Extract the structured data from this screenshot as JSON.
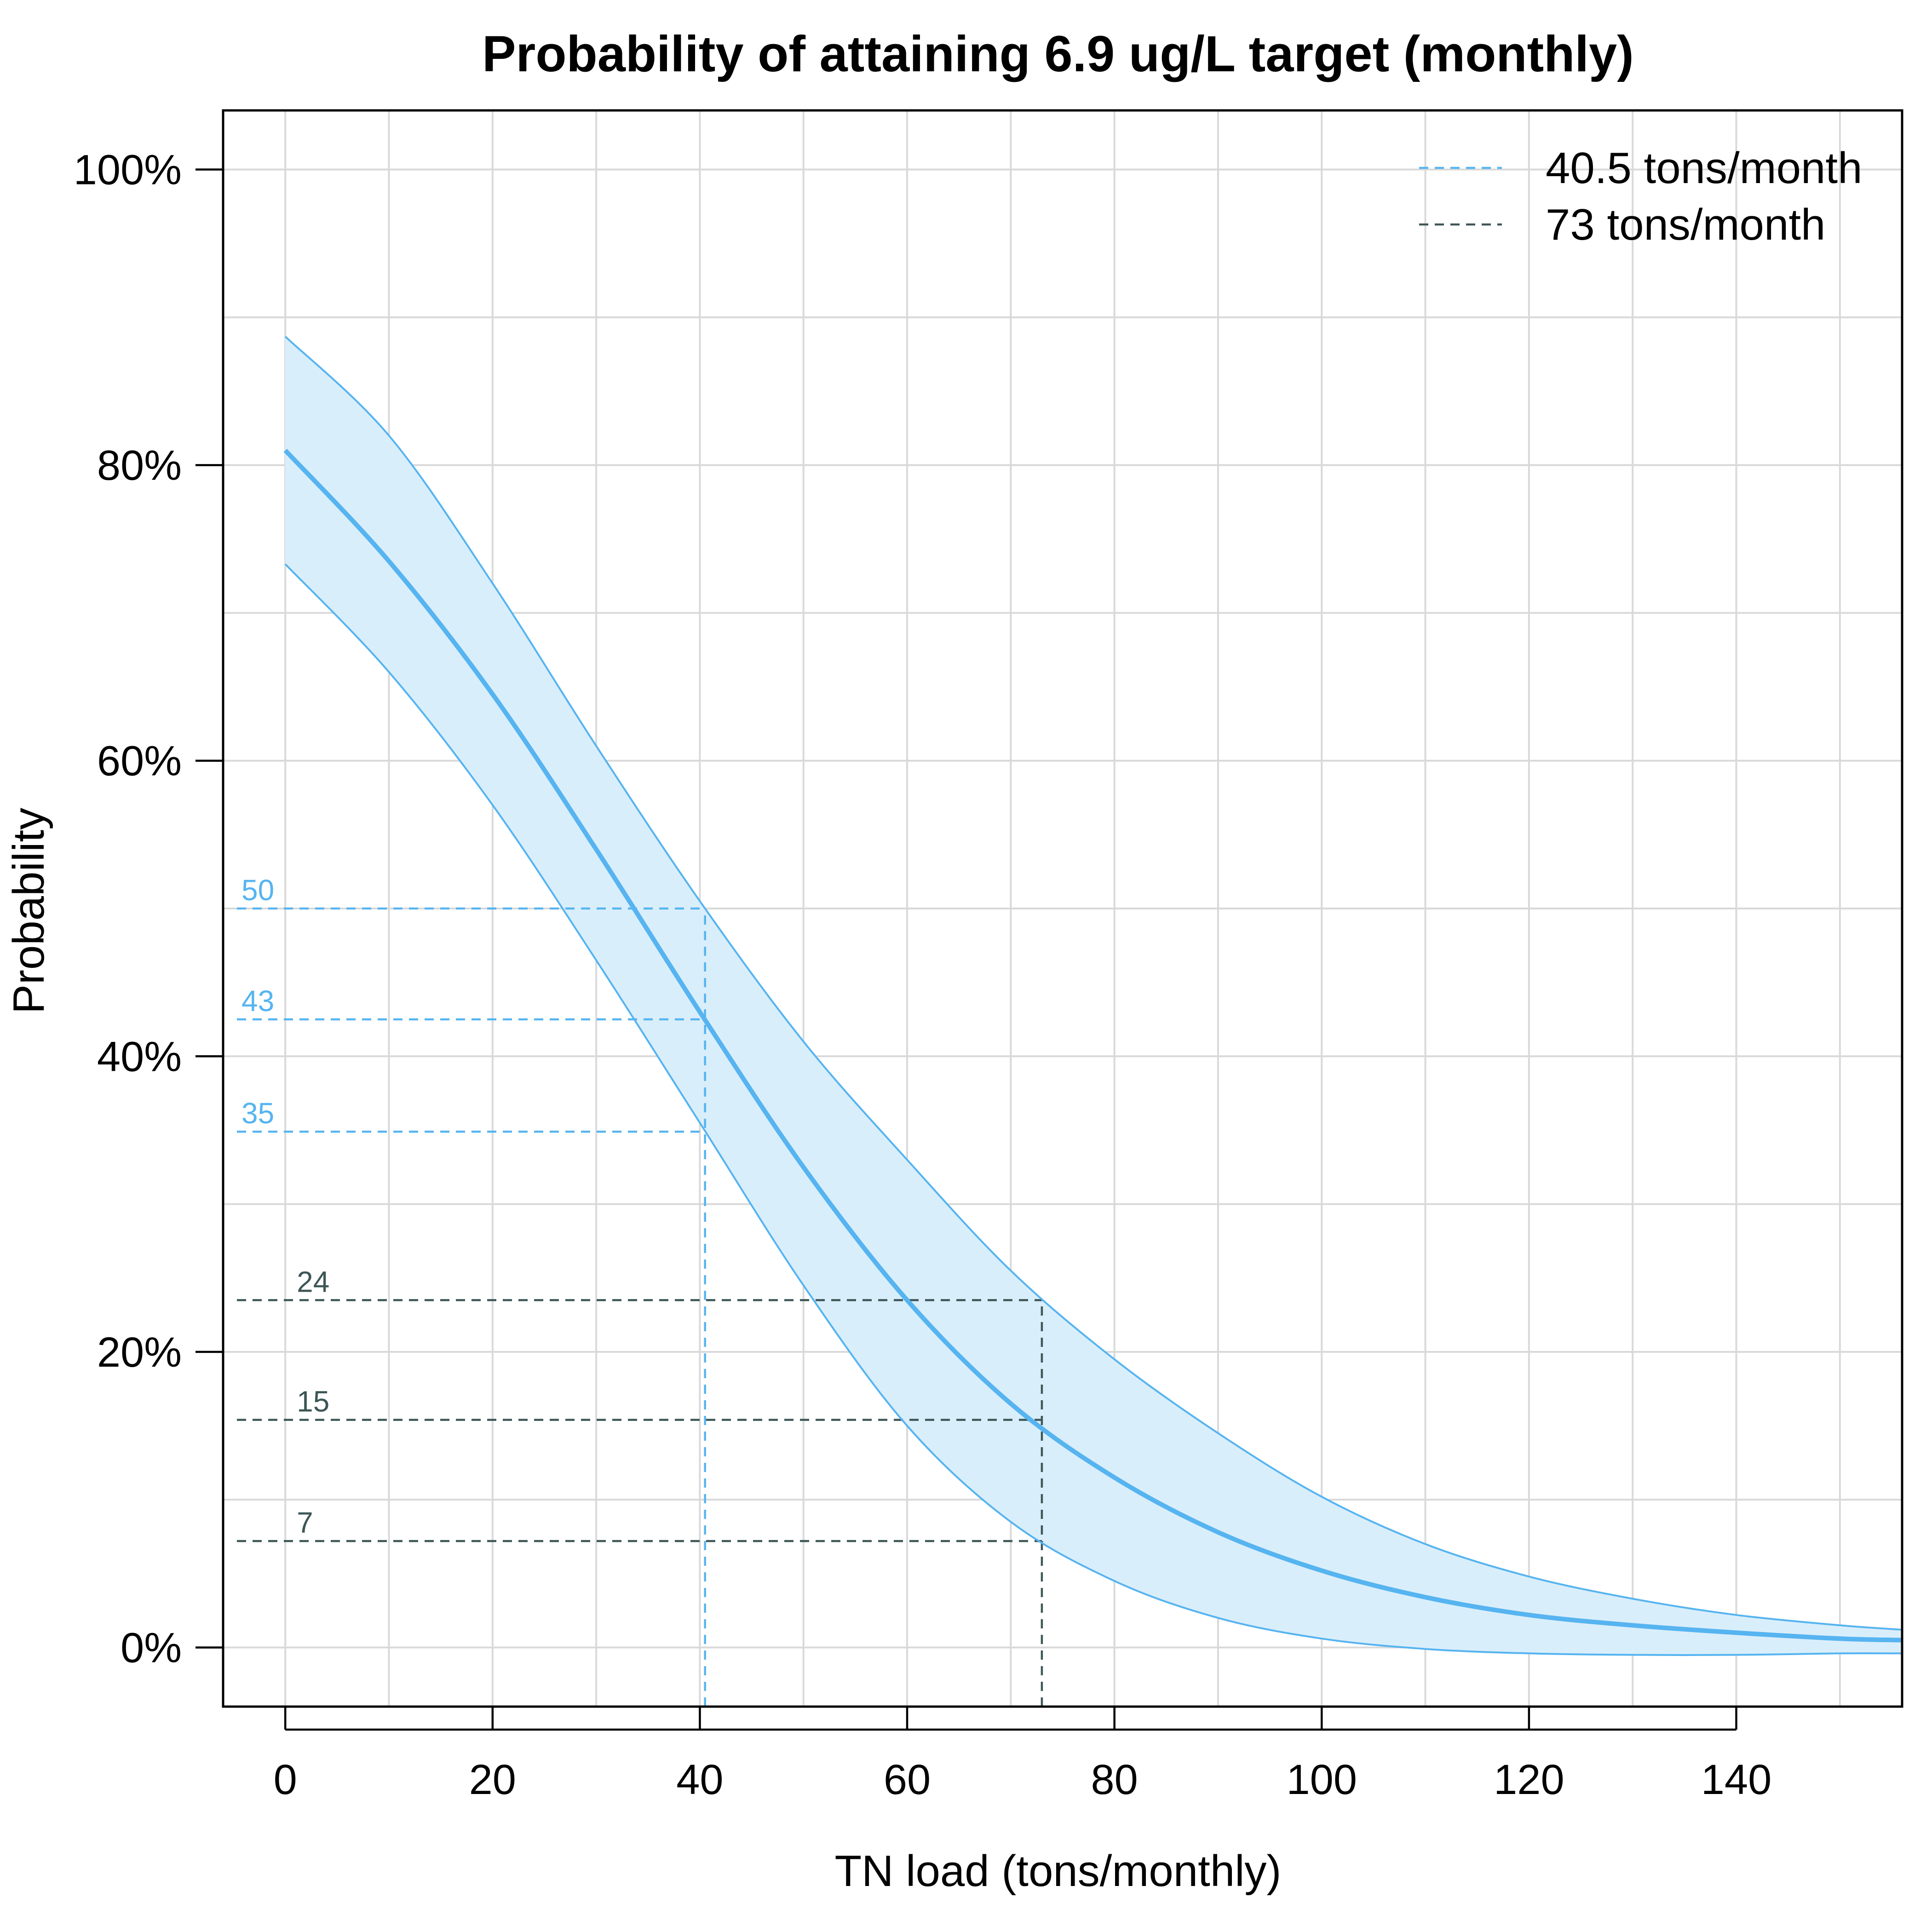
{
  "chart_data": {
    "type": "line",
    "title": "Probability of attaining 6.9 ug/L target (monthly)",
    "xlabel": "TN load (tons/monthly)",
    "ylabel": "Probability",
    "xlim": [
      -6,
      156
    ],
    "ylim": [
      -0.04,
      1.04
    ],
    "x_ticks": [
      0,
      20,
      40,
      60,
      80,
      100,
      120,
      140
    ],
    "x_tick_labels": [
      "0",
      "20",
      "40",
      "60",
      "80",
      "100",
      "120",
      "140"
    ],
    "y_ticks": [
      0,
      0.2,
      0.4,
      0.6,
      0.8,
      1.0
    ],
    "y_tick_labels": [
      "0%",
      "20%",
      "40%",
      "60%",
      "80%",
      "100%"
    ],
    "x_grid": [
      0,
      10,
      20,
      30,
      40,
      50,
      60,
      70,
      80,
      90,
      100,
      110,
      120,
      130,
      140,
      150
    ],
    "y_grid": [
      0,
      0.1,
      0.2,
      0.3,
      0.4,
      0.5,
      0.6,
      0.7,
      0.8,
      0.9,
      1.0
    ],
    "grid": true,
    "legend_position": "top-right",
    "colors": {
      "series": "#56b4f0",
      "band_fill": "#d9eefb",
      "ref_40_5": "#56b4f0",
      "ref_73": "#3d5656",
      "grid": "#d9d9d9",
      "axis": "#000000"
    },
    "x": [
      0,
      10,
      20,
      30,
      40,
      50,
      60,
      70,
      80,
      90,
      100,
      110,
      120,
      130,
      140,
      150,
      156
    ],
    "series": [
      {
        "role": "estimate",
        "values": [
          0.81,
          0.735,
          0.645,
          0.54,
          0.43,
          0.325,
          0.235,
          0.165,
          0.115,
          0.078,
          0.052,
          0.034,
          0.022,
          0.015,
          0.01,
          0.006,
          0.005
        ]
      },
      {
        "role": "upper",
        "values": [
          0.887,
          0.82,
          0.72,
          0.61,
          0.505,
          0.41,
          0.33,
          0.255,
          0.195,
          0.145,
          0.102,
          0.07,
          0.048,
          0.033,
          0.022,
          0.015,
          0.012
        ]
      },
      {
        "role": "lower",
        "values": [
          0.733,
          0.66,
          0.57,
          0.465,
          0.355,
          0.245,
          0.15,
          0.085,
          0.045,
          0.02,
          0.006,
          -0.001,
          -0.004,
          -0.005,
          -0.005,
          -0.004,
          -0.004
        ]
      }
    ],
    "legend": [
      {
        "label": "40.5 tons/month",
        "color": "#56b4f0",
        "dash": true
      },
      {
        "label": "73 tons/month",
        "color": "#3d5656",
        "dash": true
      }
    ],
    "reference_lines": [
      {
        "x": 40.5,
        "color": "#56b4f0",
        "levels": [
          {
            "y": 0.5,
            "label": "50"
          },
          {
            "y": 0.425,
            "label": "43"
          },
          {
            "y": 0.349,
            "label": "35"
          }
        ]
      },
      {
        "x": 73,
        "color": "#3d5656",
        "levels": [
          {
            "y": 0.235,
            "label": "24"
          },
          {
            "y": 0.154,
            "label": "15"
          },
          {
            "y": 0.072,
            "label": "7"
          }
        ]
      }
    ]
  }
}
